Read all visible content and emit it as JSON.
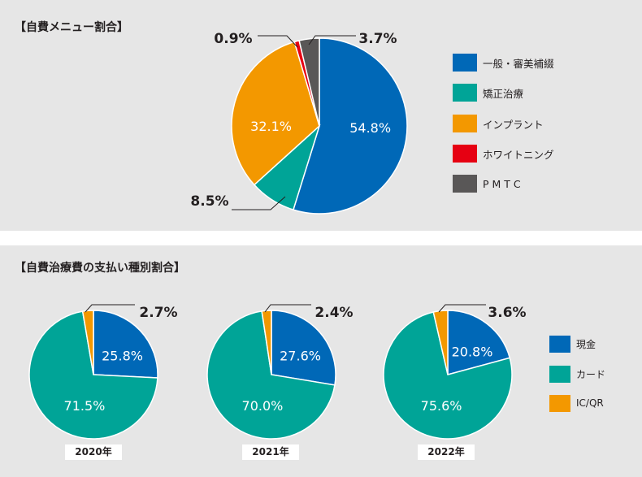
{
  "top_panel": {
    "title": "【自費メニュー割合】"
  },
  "bottom_panel": {
    "title": "【自費治療費の支払い種別割合】"
  },
  "chart_data": [
    {
      "type": "pie",
      "title": "【自費メニュー割合】",
      "categories": [
        "一般・審美補綴",
        "矯正治療",
        "インプラント",
        "ホワイトニング",
        "P M T C"
      ],
      "values": [
        54.8,
        8.5,
        32.1,
        0.9,
        3.7
      ],
      "data_labels": [
        "54.8%",
        "8.5%",
        "32.1%",
        "0.9%",
        "3.7%"
      ],
      "colors": [
        "#0068b7",
        "#00a497",
        "#f39800",
        "#e60012",
        "#595757"
      ],
      "legend_position": "right"
    },
    {
      "type": "pie",
      "title": "2020年",
      "categories": [
        "現金",
        "カード",
        "IC/QR"
      ],
      "values": [
        25.8,
        71.5,
        2.7
      ],
      "data_labels": [
        "25.8%",
        "71.5%",
        "2.7%"
      ],
      "colors": [
        "#0068b7",
        "#00a497",
        "#f39800"
      ],
      "legend_position": "right"
    },
    {
      "type": "pie",
      "title": "2021年",
      "categories": [
        "現金",
        "カード",
        "IC/QR"
      ],
      "values": [
        27.6,
        70.0,
        2.4
      ],
      "data_labels": [
        "27.6%",
        "70.0%",
        "2.4%"
      ],
      "colors": [
        "#0068b7",
        "#00a497",
        "#f39800"
      ],
      "legend_position": "right"
    },
    {
      "type": "pie",
      "title": "2022年",
      "categories": [
        "現金",
        "カード",
        "IC/QR"
      ],
      "values": [
        20.8,
        75.6,
        3.6
      ],
      "data_labels": [
        "20.8%",
        "75.6%",
        "3.6%"
      ],
      "colors": [
        "#0068b7",
        "#00a497",
        "#f39800"
      ],
      "legend_position": "right"
    }
  ]
}
